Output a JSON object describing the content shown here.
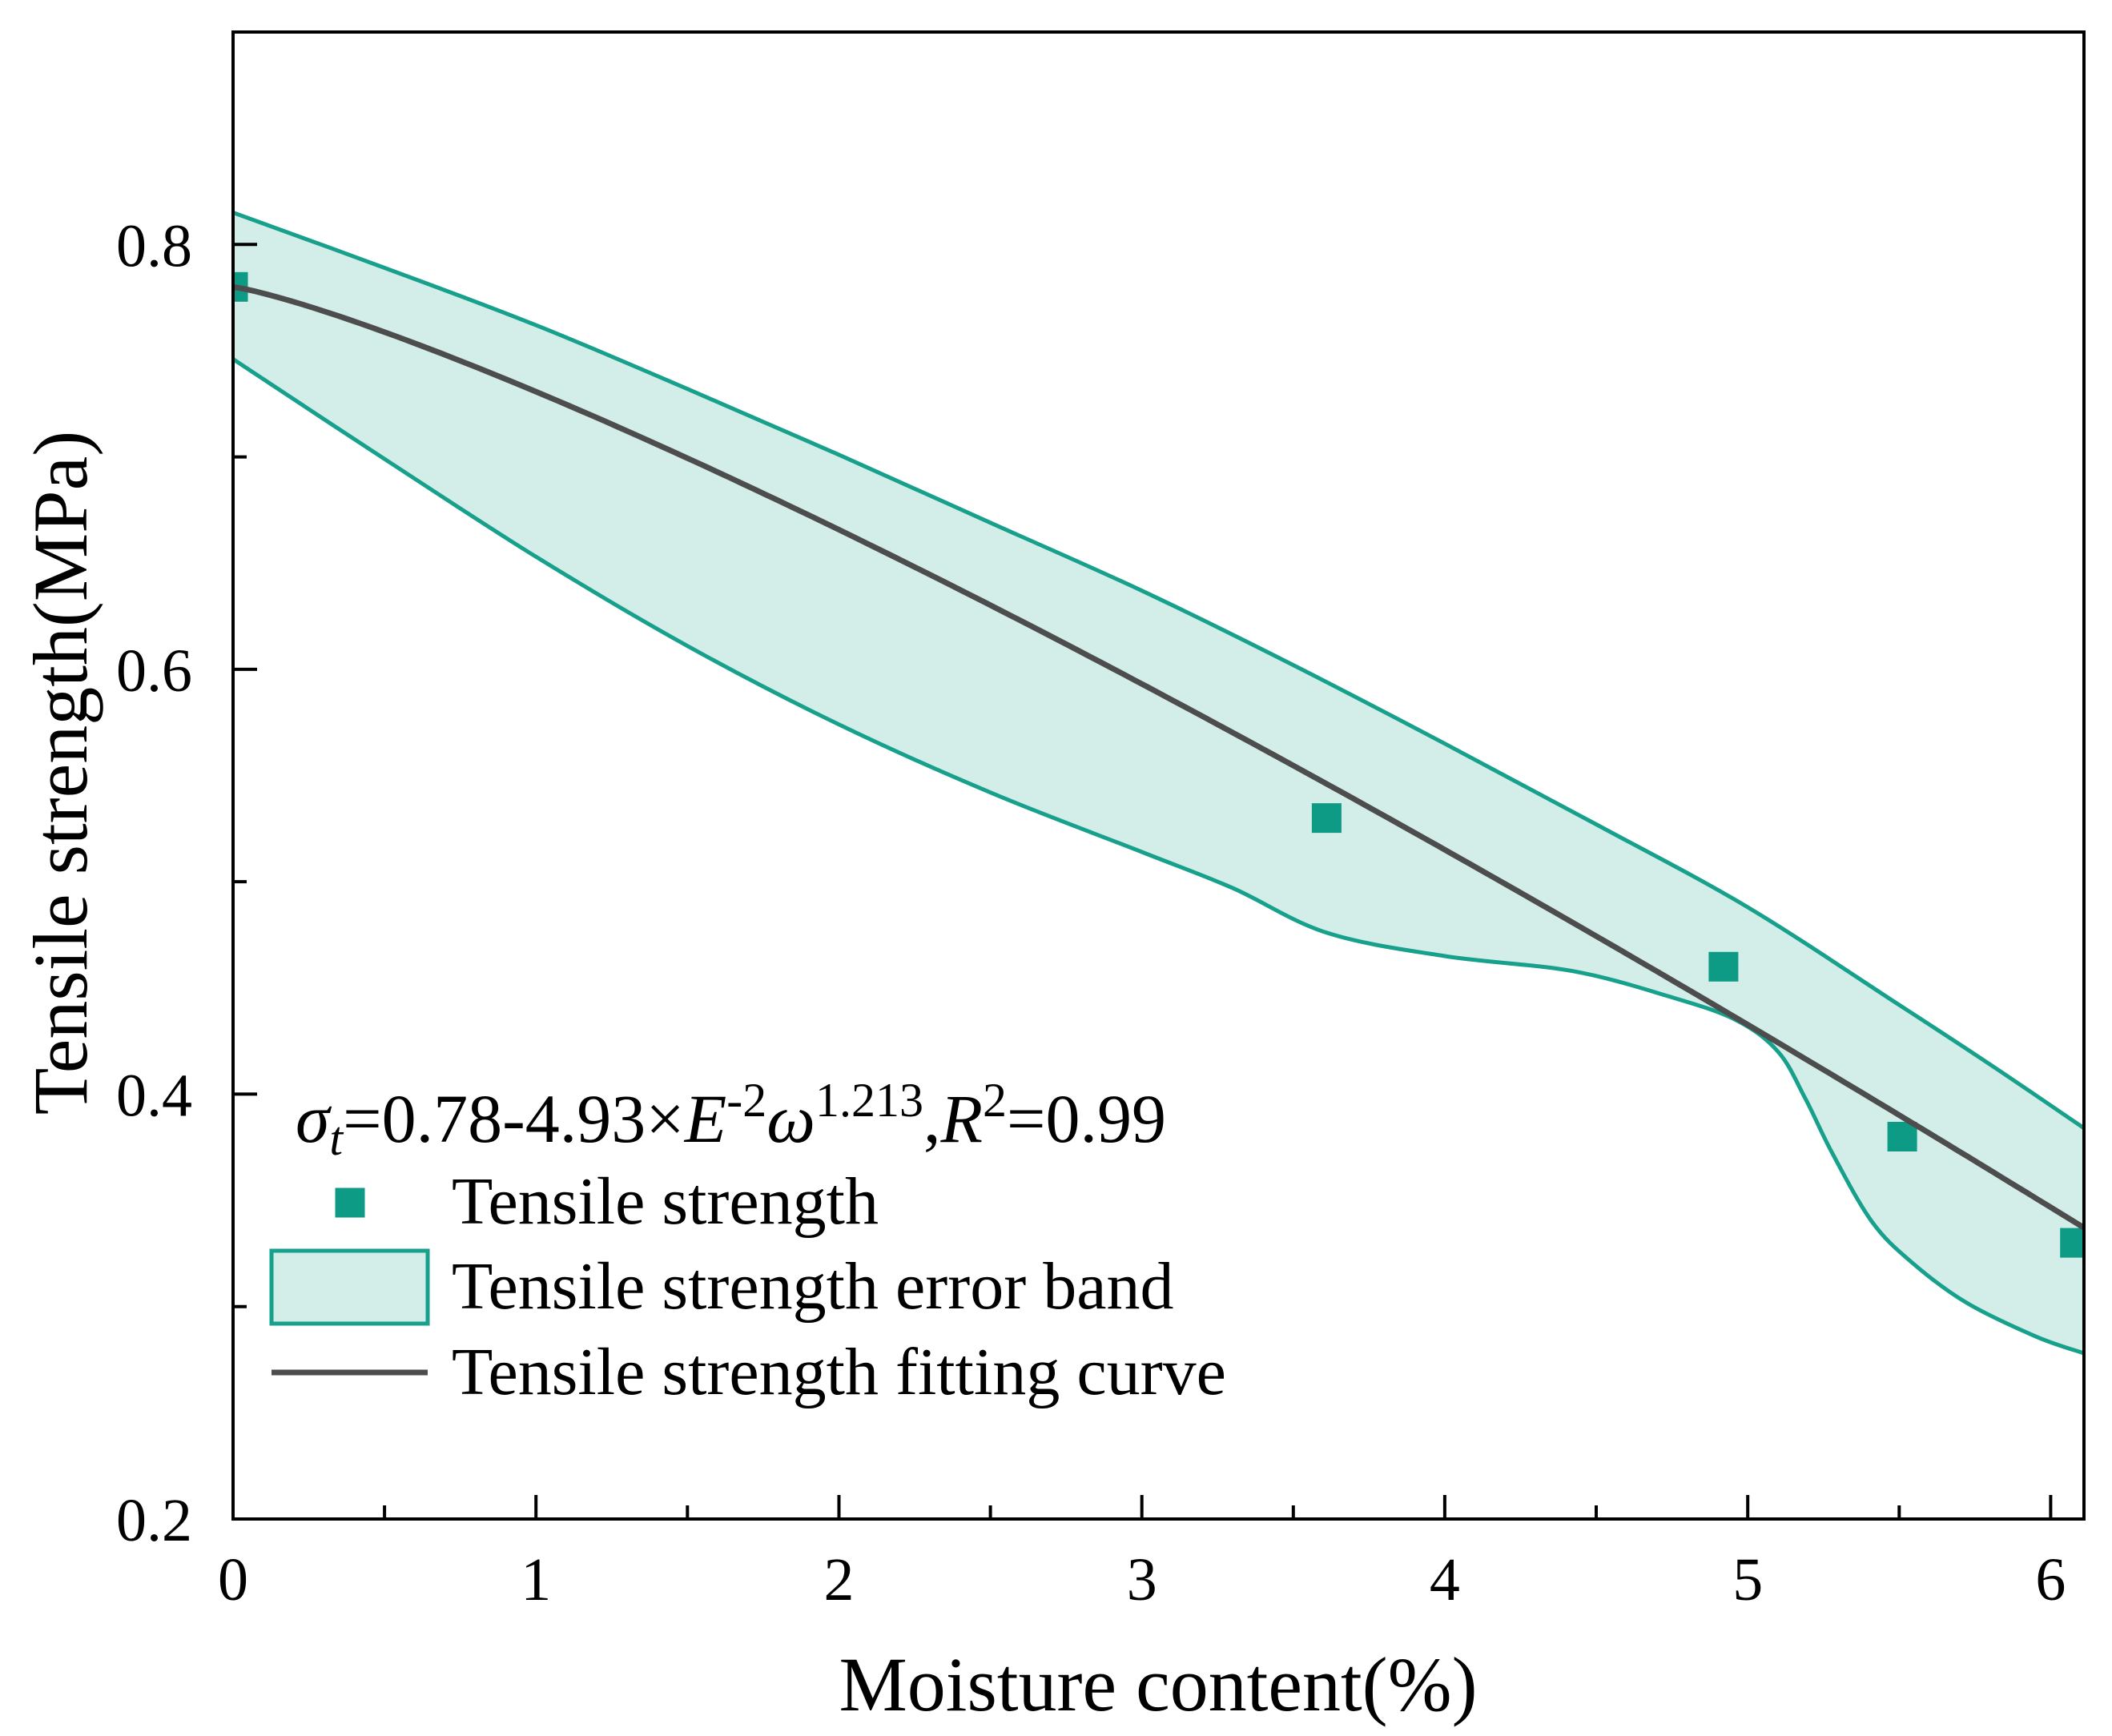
{
  "chart_data": {
    "type": "scatter",
    "xlabel": "Moisture content(%)",
    "ylabel": "Tensile strength(MPa)",
    "xlim": [
      0,
      6.11
    ],
    "ylim": [
      0.2,
      0.9
    ],
    "grid": false,
    "legend_position": "lower-left",
    "x_ticks": {
      "values": [
        0,
        1,
        2,
        3,
        4,
        5,
        6
      ],
      "labels": [
        "0",
        "1",
        "2",
        "3",
        "4",
        "5",
        "6"
      ],
      "minor": [
        0.5,
        1.5,
        2.5,
        3.5,
        4.5,
        5.5
      ]
    },
    "y_ticks": {
      "values": [
        0.2,
        0.4,
        0.6,
        0.8
      ],
      "labels": [
        "0.2",
        "0.4",
        "0.6",
        "0.8"
      ],
      "minor": [
        0.3,
        0.5,
        0.7
      ]
    },
    "series": [
      {
        "name": "Tensile strength",
        "type": "scatter",
        "color": "#0D9B85",
        "x": [
          0,
          3.61,
          4.92,
          5.51,
          6.08
        ],
        "y": [
          0.78,
          0.53,
          0.46,
          0.38,
          0.33
        ]
      },
      {
        "name": "Tensile strength error band",
        "type": "band",
        "fill": "#D3EEE9",
        "color": "#17A08C",
        "upper": {
          "x": [
            0,
            0.5,
            1,
            1.5,
            2,
            2.5,
            3,
            3.5,
            4,
            4.5,
            5,
            5.5,
            5.8,
            6.11
          ],
          "y": [
            0.815,
            0.789,
            0.762,
            0.732,
            0.701,
            0.669,
            0.637,
            0.602,
            0.565,
            0.527,
            0.488,
            0.442,
            0.414,
            0.384
          ]
        },
        "lower": {
          "x": [
            0,
            0.5,
            1,
            1.5,
            2,
            2.5,
            3,
            3.3,
            3.61,
            4,
            4.42,
            4.74,
            4.96,
            5.1,
            5.19,
            5.28,
            5.41,
            5.54,
            5.72,
            5.95,
            6.11
          ],
          "y": [
            0.746,
            0.699,
            0.653,
            0.611,
            0.574,
            0.542,
            0.514,
            0.497,
            0.476,
            0.465,
            0.458,
            0.446,
            0.435,
            0.42,
            0.398,
            0.372,
            0.34,
            0.321,
            0.302,
            0.286,
            0.278
          ]
        }
      },
      {
        "name": "Tensile strength fitting curve",
        "type": "line",
        "color": "#4D4D4D",
        "model": {
          "a": 0.78,
          "b": 0.0493,
          "c": 1.213
        },
        "x_range": [
          0,
          6.11
        ]
      }
    ],
    "legend": {
      "equation": {
        "sigma": "σ",
        "sigma_sub": "t",
        "part1": "=0.78-4.93×",
        "E": "E",
        "E_sup": "-2",
        "omega": "ω",
        "omega_sup": "1.213",
        "comma": ",",
        "R": "R",
        "R_sup": "2",
        "part2": "=0.99"
      }
    }
  }
}
